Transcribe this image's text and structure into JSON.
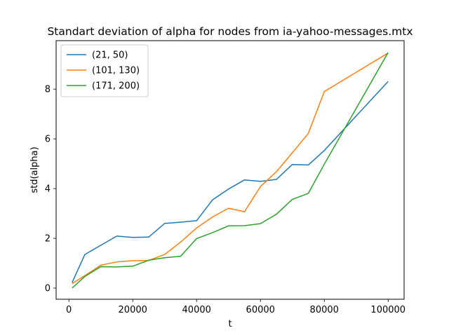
{
  "chart_data": {
    "type": "line",
    "title": "Standart deviation of alpha for nodes from ia-yahoo-messages.mtx",
    "xlabel": "t",
    "ylabel": "std(alpha)",
    "xlim": [
      -4000,
      105000
    ],
    "ylim": [
      -0.45,
      9.95
    ],
    "xticks": [
      0,
      20000,
      40000,
      60000,
      80000,
      100000
    ],
    "yticks": [
      0,
      2,
      4,
      6,
      8
    ],
    "grid": false,
    "legend_position": "upper-left",
    "series": [
      {
        "name": "(21, 50)",
        "color": "#1f77b4",
        "x": [
          1000,
          5000,
          10000,
          15000,
          20000,
          25000,
          30000,
          35000,
          40000,
          45000,
          50000,
          55000,
          60000,
          65000,
          70000,
          75000,
          80000,
          100000
        ],
        "y": [
          0.22,
          1.35,
          1.72,
          2.09,
          2.04,
          2.05,
          2.6,
          2.65,
          2.71,
          3.55,
          3.98,
          4.35,
          4.29,
          4.37,
          4.97,
          4.95,
          5.53,
          8.31
        ]
      },
      {
        "name": "(101, 130)",
        "color": "#ff7f0e",
        "x": [
          1000,
          5000,
          10000,
          15000,
          20000,
          25000,
          30000,
          35000,
          40000,
          45000,
          50000,
          55000,
          60000,
          65000,
          70000,
          75000,
          80000,
          100000
        ],
        "y": [
          0.18,
          0.5,
          0.92,
          1.05,
          1.1,
          1.11,
          1.35,
          1.85,
          2.42,
          2.86,
          3.21,
          3.07,
          4.08,
          4.68,
          5.44,
          6.22,
          7.9,
          9.45
        ]
      },
      {
        "name": "(171, 200)",
        "color": "#2ca02c",
        "x": [
          1000,
          5000,
          10000,
          15000,
          20000,
          25000,
          30000,
          35000,
          40000,
          45000,
          50000,
          55000,
          60000,
          65000,
          70000,
          75000,
          80000,
          100000
        ],
        "y": [
          0.0,
          0.47,
          0.86,
          0.85,
          0.88,
          1.12,
          1.22,
          1.28,
          1.99,
          2.23,
          2.5,
          2.51,
          2.59,
          2.97,
          3.57,
          3.81,
          4.98,
          9.47
        ]
      }
    ]
  }
}
